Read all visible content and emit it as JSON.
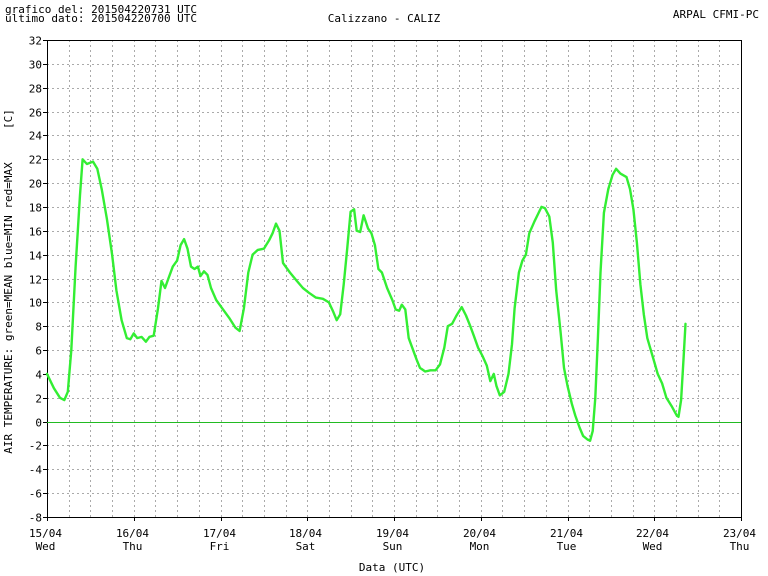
{
  "header": {
    "generated": "grafico del: 201504220731 UTC",
    "last_data": "ultimo dato: 201504220700 UTC",
    "station": "Calizzano - CALIZ",
    "agency": "ARPAL CFMI-PC"
  },
  "chart_data": {
    "type": "line",
    "title": "Calizzano - CALIZ",
    "xlabel": "Data (UTC)",
    "ylabel": "AIR TEMPERATURE: green=MEAN  blue=MIN  red=MAX",
    "unit_label": "[C]",
    "ylim": [
      -8,
      32
    ],
    "y_ticks": [
      -8,
      -6,
      -4,
      -2,
      0,
      2,
      4,
      6,
      8,
      10,
      12,
      14,
      16,
      18,
      20,
      22,
      24,
      26,
      28,
      30,
      32
    ],
    "xlim": [
      0,
      8
    ],
    "x_ticks": [
      {
        "date": "15/04",
        "day": "Wed"
      },
      {
        "date": "16/04",
        "day": "Thu"
      },
      {
        "date": "17/04",
        "day": "Fri"
      },
      {
        "date": "18/04",
        "day": "Sat"
      },
      {
        "date": "19/04",
        "day": "Sun"
      },
      {
        "date": "20/04",
        "day": "Mon"
      },
      {
        "date": "21/04",
        "day": "Tue"
      },
      {
        "date": "22/04",
        "day": "Wed"
      },
      {
        "date": "23/04",
        "day": "Thu"
      }
    ],
    "grid": true,
    "zero_line": true,
    "series": [
      {
        "name": "MEAN",
        "color": "#33ee33",
        "points": [
          [
            0.0,
            4.0
          ],
          [
            0.08,
            2.8
          ],
          [
            0.15,
            2.0
          ],
          [
            0.2,
            1.8
          ],
          [
            0.24,
            2.5
          ],
          [
            0.28,
            6.0
          ],
          [
            0.33,
            13.0
          ],
          [
            0.38,
            19.0
          ],
          [
            0.41,
            22.0
          ],
          [
            0.46,
            21.6
          ],
          [
            0.53,
            21.8
          ],
          [
            0.58,
            21.2
          ],
          [
            0.63,
            19.5
          ],
          [
            0.69,
            17.0
          ],
          [
            0.75,
            14.0
          ],
          [
            0.8,
            11.0
          ],
          [
            0.86,
            8.5
          ],
          [
            0.92,
            7.0
          ],
          [
            0.96,
            6.9
          ],
          [
            1.0,
            7.4
          ],
          [
            1.04,
            7.0
          ],
          [
            1.09,
            7.1
          ],
          [
            1.14,
            6.7
          ],
          [
            1.18,
            7.1
          ],
          [
            1.23,
            7.2
          ],
          [
            1.28,
            9.5
          ],
          [
            1.32,
            11.8
          ],
          [
            1.36,
            11.2
          ],
          [
            1.4,
            12.0
          ],
          [
            1.45,
            13.0
          ],
          [
            1.5,
            13.5
          ],
          [
            1.54,
            14.8
          ],
          [
            1.58,
            15.3
          ],
          [
            1.62,
            14.5
          ],
          [
            1.66,
            13.0
          ],
          [
            1.7,
            12.8
          ],
          [
            1.74,
            13.0
          ],
          [
            1.77,
            12.2
          ],
          [
            1.81,
            12.6
          ],
          [
            1.85,
            12.3
          ],
          [
            1.89,
            11.2
          ],
          [
            1.95,
            10.2
          ],
          [
            2.02,
            9.5
          ],
          [
            2.1,
            8.7
          ],
          [
            2.17,
            7.9
          ],
          [
            2.22,
            7.6
          ],
          [
            2.27,
            9.5
          ],
          [
            2.32,
            12.5
          ],
          [
            2.37,
            14.0
          ],
          [
            2.43,
            14.4
          ],
          [
            2.5,
            14.5
          ],
          [
            2.56,
            15.2
          ],
          [
            2.6,
            15.8
          ],
          [
            2.64,
            16.6
          ],
          [
            2.68,
            16.0
          ],
          [
            2.72,
            13.3
          ],
          [
            2.8,
            12.5
          ],
          [
            2.88,
            11.8
          ],
          [
            2.95,
            11.2
          ],
          [
            3.02,
            10.8
          ],
          [
            3.1,
            10.4
          ],
          [
            3.18,
            10.3
          ],
          [
            3.25,
            10.0
          ],
          [
            3.3,
            9.2
          ],
          [
            3.34,
            8.5
          ],
          [
            3.38,
            9.0
          ],
          [
            3.42,
            11.5
          ],
          [
            3.46,
            14.5
          ],
          [
            3.5,
            17.6
          ],
          [
            3.54,
            17.8
          ],
          [
            3.57,
            16.0
          ],
          [
            3.61,
            15.9
          ],
          [
            3.65,
            17.3
          ],
          [
            3.7,
            16.2
          ],
          [
            3.74,
            15.8
          ],
          [
            3.78,
            14.8
          ],
          [
            3.82,
            12.8
          ],
          [
            3.86,
            12.5
          ],
          [
            3.92,
            11.2
          ],
          [
            3.98,
            10.2
          ],
          [
            4.02,
            9.4
          ],
          [
            4.06,
            9.3
          ],
          [
            4.09,
            9.8
          ],
          [
            4.13,
            9.4
          ],
          [
            4.17,
            7.0
          ],
          [
            4.22,
            6.0
          ],
          [
            4.26,
            5.2
          ],
          [
            4.3,
            4.5
          ],
          [
            4.36,
            4.2
          ],
          [
            4.42,
            4.3
          ],
          [
            4.48,
            4.3
          ],
          [
            4.53,
            4.8
          ],
          [
            4.58,
            6.2
          ],
          [
            4.62,
            8.0
          ],
          [
            4.67,
            8.2
          ],
          [
            4.72,
            8.9
          ],
          [
            4.78,
            9.6
          ],
          [
            4.83,
            8.9
          ],
          [
            4.88,
            8.0
          ],
          [
            4.92,
            7.2
          ],
          [
            4.97,
            6.2
          ],
          [
            5.02,
            5.5
          ],
          [
            5.07,
            4.7
          ],
          [
            5.11,
            3.4
          ],
          [
            5.15,
            4.0
          ],
          [
            5.18,
            3.0
          ],
          [
            5.22,
            2.2
          ],
          [
            5.27,
            2.5
          ],
          [
            5.32,
            4.0
          ],
          [
            5.36,
            6.5
          ],
          [
            5.39,
            9.5
          ],
          [
            5.44,
            12.5
          ],
          [
            5.48,
            13.5
          ],
          [
            5.52,
            14.0
          ],
          [
            5.56,
            15.8
          ],
          [
            5.62,
            16.8
          ],
          [
            5.66,
            17.4
          ],
          [
            5.7,
            18.0
          ],
          [
            5.74,
            17.9
          ],
          [
            5.79,
            17.2
          ],
          [
            5.83,
            15.0
          ],
          [
            5.87,
            11.0
          ],
          [
            5.92,
            7.5
          ],
          [
            5.96,
            4.5
          ],
          [
            6.0,
            3.0
          ],
          [
            6.05,
            1.5
          ],
          [
            6.09,
            0.5
          ],
          [
            6.14,
            -0.5
          ],
          [
            6.18,
            -1.2
          ],
          [
            6.23,
            -1.5
          ],
          [
            6.26,
            -1.6
          ],
          [
            6.29,
            -0.8
          ],
          [
            6.32,
            2.0
          ],
          [
            6.35,
            7.0
          ],
          [
            6.38,
            12.5
          ],
          [
            6.42,
            17.5
          ],
          [
            6.47,
            19.5
          ],
          [
            6.52,
            20.7
          ],
          [
            6.56,
            21.2
          ],
          [
            6.61,
            20.8
          ],
          [
            6.68,
            20.5
          ],
          [
            6.72,
            19.5
          ],
          [
            6.76,
            17.8
          ],
          [
            6.8,
            15.0
          ],
          [
            6.84,
            11.5
          ],
          [
            6.88,
            9.0
          ],
          [
            6.92,
            7.0
          ],
          [
            6.96,
            6.0
          ],
          [
            7.0,
            5.0
          ],
          [
            7.04,
            4.0
          ],
          [
            7.09,
            3.2
          ],
          [
            7.14,
            2.0
          ],
          [
            7.2,
            1.3
          ],
          [
            7.26,
            0.5
          ],
          [
            7.28,
            0.4
          ],
          [
            7.31,
            1.8
          ],
          [
            7.34,
            5.5
          ],
          [
            7.36,
            8.2
          ]
        ]
      }
    ]
  }
}
